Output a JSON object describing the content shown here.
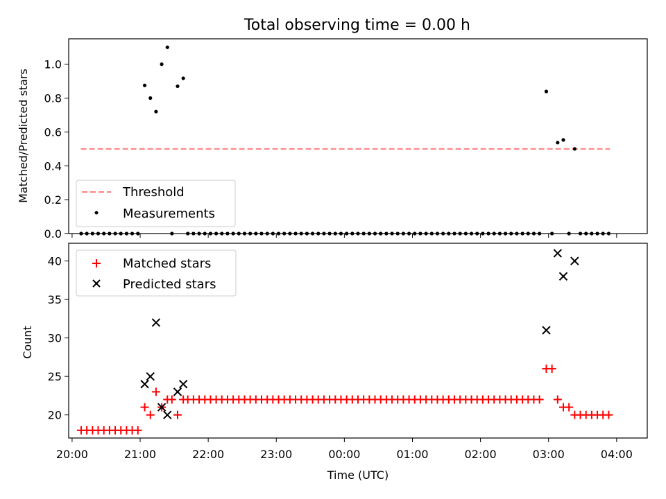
{
  "figure": {
    "title": "Total observing time = 0.00 h"
  },
  "chart_data": [
    {
      "type": "scatter",
      "ylabel": "Matched/Predicted stars",
      "ylim": [
        0,
        1.15
      ],
      "yticks": [
        "0.0",
        "0.2",
        "0.4",
        "0.6",
        "0.8",
        "1.0"
      ],
      "x_range_hours": [
        19.95,
        28.45
      ],
      "grid": false,
      "legend_position": "lower-left",
      "threshold": {
        "name": "Threshold",
        "value": 0.5,
        "x_start": 20.13,
        "x_end": 27.9,
        "color": "#ff7f7f",
        "style": "dashed"
      },
      "series": [
        {
          "name": "Measurements",
          "color": "#000000",
          "marker": "dot",
          "points": [
            {
              "x": "20:08",
              "y": 0
            },
            {
              "x": "20:13",
              "y": 0
            },
            {
              "x": "20:18",
              "y": 0
            },
            {
              "x": "20:23",
              "y": 0
            },
            {
              "x": "20:28",
              "y": 0
            },
            {
              "x": "20:33",
              "y": 0
            },
            {
              "x": "20:38",
              "y": 0
            },
            {
              "x": "20:43",
              "y": 0
            },
            {
              "x": "20:48",
              "y": 0
            },
            {
              "x": "20:53",
              "y": 0
            },
            {
              "x": "20:58",
              "y": 0
            },
            {
              "x": "21:04",
              "y": 0.875
            },
            {
              "x": "21:09",
              "y": 0.8
            },
            {
              "x": "21:14",
              "y": 0.72
            },
            {
              "x": "21:19",
              "y": 1.0
            },
            {
              "x": "21:24",
              "y": 1.1
            },
            {
              "x": "21:28",
              "y": 0
            },
            {
              "x": "21:33",
              "y": 0.87
            },
            {
              "x": "21:38",
              "y": 0.917
            },
            {
              "x": "21:42",
              "y": 0
            },
            {
              "x": "21:47",
              "y": 0
            },
            {
              "x": "21:52",
              "y": 0
            },
            {
              "x": "21:57",
              "y": 0
            },
            {
              "x": "22:02",
              "y": 0
            },
            {
              "x": "22:07",
              "y": 0
            },
            {
              "x": "22:12",
              "y": 0
            },
            {
              "x": "22:17",
              "y": 0
            },
            {
              "x": "22:22",
              "y": 0
            },
            {
              "x": "22:27",
              "y": 0
            },
            {
              "x": "22:32",
              "y": 0
            },
            {
              "x": "22:37",
              "y": 0
            },
            {
              "x": "22:42",
              "y": 0
            },
            {
              "x": "22:47",
              "y": 0
            },
            {
              "x": "22:52",
              "y": 0
            },
            {
              "x": "22:57",
              "y": 0
            },
            {
              "x": "23:02",
              "y": 0
            },
            {
              "x": "23:07",
              "y": 0
            },
            {
              "x": "23:12",
              "y": 0
            },
            {
              "x": "23:17",
              "y": 0
            },
            {
              "x": "23:22",
              "y": 0
            },
            {
              "x": "23:27",
              "y": 0
            },
            {
              "x": "23:32",
              "y": 0
            },
            {
              "x": "23:37",
              "y": 0
            },
            {
              "x": "23:42",
              "y": 0
            },
            {
              "x": "23:47",
              "y": 0
            },
            {
              "x": "23:52",
              "y": 0
            },
            {
              "x": "23:57",
              "y": 0
            },
            {
              "x": "00:02",
              "y": 0
            },
            {
              "x": "00:07",
              "y": 0
            },
            {
              "x": "00:12",
              "y": 0
            },
            {
              "x": "00:17",
              "y": 0
            },
            {
              "x": "00:22",
              "y": 0
            },
            {
              "x": "00:27",
              "y": 0
            },
            {
              "x": "00:32",
              "y": 0
            },
            {
              "x": "00:37",
              "y": 0
            },
            {
              "x": "00:42",
              "y": 0
            },
            {
              "x": "00:47",
              "y": 0
            },
            {
              "x": "00:52",
              "y": 0
            },
            {
              "x": "00:57",
              "y": 0
            },
            {
              "x": "01:02",
              "y": 0
            },
            {
              "x": "01:07",
              "y": 0
            },
            {
              "x": "01:12",
              "y": 0
            },
            {
              "x": "01:17",
              "y": 0
            },
            {
              "x": "01:22",
              "y": 0
            },
            {
              "x": "01:27",
              "y": 0
            },
            {
              "x": "01:32",
              "y": 0
            },
            {
              "x": "01:37",
              "y": 0
            },
            {
              "x": "01:42",
              "y": 0
            },
            {
              "x": "01:47",
              "y": 0
            },
            {
              "x": "01:52",
              "y": 0
            },
            {
              "x": "01:57",
              "y": 0
            },
            {
              "x": "02:02",
              "y": 0
            },
            {
              "x": "02:07",
              "y": 0
            },
            {
              "x": "02:12",
              "y": 0
            },
            {
              "x": "02:17",
              "y": 0
            },
            {
              "x": "02:22",
              "y": 0
            },
            {
              "x": "02:27",
              "y": 0
            },
            {
              "x": "02:32",
              "y": 0
            },
            {
              "x": "02:37",
              "y": 0
            },
            {
              "x": "02:42",
              "y": 0
            },
            {
              "x": "02:47",
              "y": 0
            },
            {
              "x": "02:52",
              "y": 0
            },
            {
              "x": "02:58",
              "y": 0.839
            },
            {
              "x": "03:03",
              "y": 0
            },
            {
              "x": "03:08",
              "y": 0.537
            },
            {
              "x": "03:13",
              "y": 0.553
            },
            {
              "x": "03:18",
              "y": 0
            },
            {
              "x": "03:23",
              "y": 0.5
            },
            {
              "x": "03:28",
              "y": 0
            },
            {
              "x": "03:33",
              "y": 0
            },
            {
              "x": "03:38",
              "y": 0
            },
            {
              "x": "03:43",
              "y": 0
            },
            {
              "x": "03:48",
              "y": 0
            },
            {
              "x": "03:53",
              "y": 0
            }
          ]
        }
      ],
      "legend": [
        "Threshold",
        "Measurements"
      ]
    },
    {
      "type": "scatter",
      "xlabel": "Time (UTC)",
      "ylabel": "Count",
      "ylim": [
        17,
        42.3
      ],
      "yticks": [
        "20",
        "25",
        "30",
        "35",
        "40"
      ],
      "xticks": [
        "20:00",
        "21:00",
        "22:00",
        "23:00",
        "00:00",
        "01:00",
        "02:00",
        "03:00",
        "04:00"
      ],
      "x_range_hours": [
        19.95,
        28.45
      ],
      "grid": false,
      "legend_position": "upper-left",
      "series": [
        {
          "name": "Matched stars",
          "color": "#ff0000",
          "marker": "plus",
          "points": [
            {
              "x": "20:08",
              "y": 18
            },
            {
              "x": "20:13",
              "y": 18
            },
            {
              "x": "20:18",
              "y": 18
            },
            {
              "x": "20:23",
              "y": 18
            },
            {
              "x": "20:28",
              "y": 18
            },
            {
              "x": "20:33",
              "y": 18
            },
            {
              "x": "20:38",
              "y": 18
            },
            {
              "x": "20:43",
              "y": 18
            },
            {
              "x": "20:48",
              "y": 18
            },
            {
              "x": "20:53",
              "y": 18
            },
            {
              "x": "20:58",
              "y": 18
            },
            {
              "x": "21:04",
              "y": 21
            },
            {
              "x": "21:09",
              "y": 20
            },
            {
              "x": "21:14",
              "y": 23
            },
            {
              "x": "21:19",
              "y": 21
            },
            {
              "x": "21:24",
              "y": 22
            },
            {
              "x": "21:28",
              "y": 22
            },
            {
              "x": "21:33",
              "y": 20
            },
            {
              "x": "21:38",
              "y": 22
            },
            {
              "x": "21:42",
              "y": 22
            },
            {
              "x": "21:47",
              "y": 22
            },
            {
              "x": "21:52",
              "y": 22
            },
            {
              "x": "21:57",
              "y": 22
            },
            {
              "x": "22:02",
              "y": 22
            },
            {
              "x": "22:07",
              "y": 22
            },
            {
              "x": "22:12",
              "y": 22
            },
            {
              "x": "22:17",
              "y": 22
            },
            {
              "x": "22:22",
              "y": 22
            },
            {
              "x": "22:27",
              "y": 22
            },
            {
              "x": "22:32",
              "y": 22
            },
            {
              "x": "22:37",
              "y": 22
            },
            {
              "x": "22:42",
              "y": 22
            },
            {
              "x": "22:47",
              "y": 22
            },
            {
              "x": "22:52",
              "y": 22
            },
            {
              "x": "22:57",
              "y": 22
            },
            {
              "x": "23:02",
              "y": 22
            },
            {
              "x": "23:07",
              "y": 22
            },
            {
              "x": "23:12",
              "y": 22
            },
            {
              "x": "23:17",
              "y": 22
            },
            {
              "x": "23:22",
              "y": 22
            },
            {
              "x": "23:27",
              "y": 22
            },
            {
              "x": "23:32",
              "y": 22
            },
            {
              "x": "23:37",
              "y": 22
            },
            {
              "x": "23:42",
              "y": 22
            },
            {
              "x": "23:47",
              "y": 22
            },
            {
              "x": "23:52",
              "y": 22
            },
            {
              "x": "23:57",
              "y": 22
            },
            {
              "x": "00:02",
              "y": 22
            },
            {
              "x": "00:07",
              "y": 22
            },
            {
              "x": "00:12",
              "y": 22
            },
            {
              "x": "00:17",
              "y": 22
            },
            {
              "x": "00:22",
              "y": 22
            },
            {
              "x": "00:27",
              "y": 22
            },
            {
              "x": "00:32",
              "y": 22
            },
            {
              "x": "00:37",
              "y": 22
            },
            {
              "x": "00:42",
              "y": 22
            },
            {
              "x": "00:47",
              "y": 22
            },
            {
              "x": "00:52",
              "y": 22
            },
            {
              "x": "00:57",
              "y": 22
            },
            {
              "x": "01:02",
              "y": 22
            },
            {
              "x": "01:07",
              "y": 22
            },
            {
              "x": "01:12",
              "y": 22
            },
            {
              "x": "01:17",
              "y": 22
            },
            {
              "x": "01:22",
              "y": 22
            },
            {
              "x": "01:27",
              "y": 22
            },
            {
              "x": "01:32",
              "y": 22
            },
            {
              "x": "01:37",
              "y": 22
            },
            {
              "x": "01:42",
              "y": 22
            },
            {
              "x": "01:47",
              "y": 22
            },
            {
              "x": "01:52",
              "y": 22
            },
            {
              "x": "01:57",
              "y": 22
            },
            {
              "x": "02:02",
              "y": 22
            },
            {
              "x": "02:07",
              "y": 22
            },
            {
              "x": "02:12",
              "y": 22
            },
            {
              "x": "02:17",
              "y": 22
            },
            {
              "x": "02:22",
              "y": 22
            },
            {
              "x": "02:27",
              "y": 22
            },
            {
              "x": "02:32",
              "y": 22
            },
            {
              "x": "02:37",
              "y": 22
            },
            {
              "x": "02:42",
              "y": 22
            },
            {
              "x": "02:47",
              "y": 22
            },
            {
              "x": "02:52",
              "y": 22
            },
            {
              "x": "02:58",
              "y": 26
            },
            {
              "x": "03:03",
              "y": 26
            },
            {
              "x": "03:08",
              "y": 22
            },
            {
              "x": "03:13",
              "y": 21
            },
            {
              "x": "03:18",
              "y": 21
            },
            {
              "x": "03:23",
              "y": 20
            },
            {
              "x": "03:28",
              "y": 20
            },
            {
              "x": "03:33",
              "y": 20
            },
            {
              "x": "03:38",
              "y": 20
            },
            {
              "x": "03:43",
              "y": 20
            },
            {
              "x": "03:48",
              "y": 20
            },
            {
              "x": "03:53",
              "y": 20
            }
          ]
        },
        {
          "name": "Predicted stars",
          "color": "#000000",
          "marker": "x",
          "points": [
            {
              "x": "21:04",
              "y": 24
            },
            {
              "x": "21:09",
              "y": 25
            },
            {
              "x": "21:14",
              "y": 32
            },
            {
              "x": "21:19",
              "y": 21
            },
            {
              "x": "21:24",
              "y": 20
            },
            {
              "x": "21:33",
              "y": 23
            },
            {
              "x": "21:38",
              "y": 24
            },
            {
              "x": "02:58",
              "y": 31
            },
            {
              "x": "03:08",
              "y": 41
            },
            {
              "x": "03:13",
              "y": 38
            },
            {
              "x": "03:23",
              "y": 40
            }
          ]
        }
      ],
      "legend": [
        "Matched stars",
        "Predicted stars"
      ]
    }
  ]
}
